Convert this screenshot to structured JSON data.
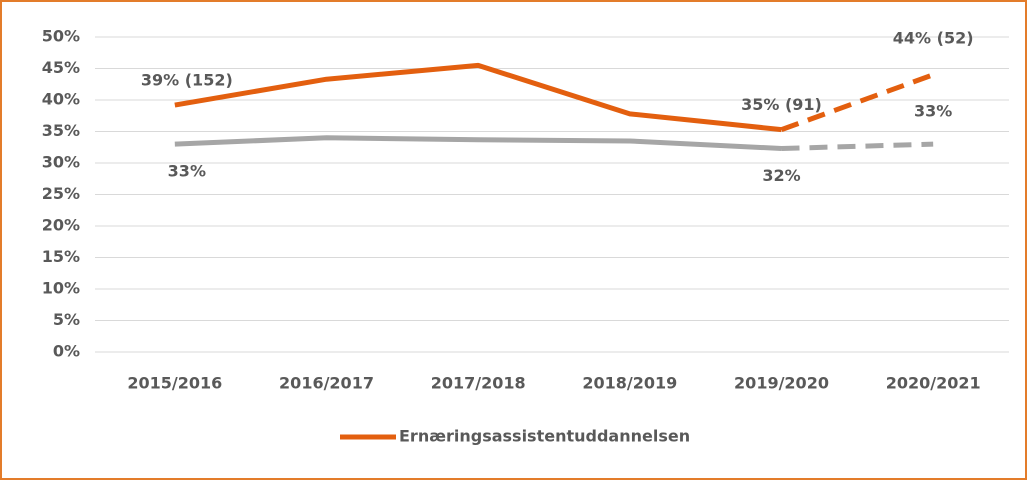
{
  "chart_data": {
    "type": "line",
    "categories": [
      "2015/2016",
      "2016/2017",
      "2017/2018",
      "2018/2019",
      "2019/2020",
      "2020/2021"
    ],
    "series": [
      {
        "name": "Ernæringsassistentuddannelsen",
        "color": "#e35f0f",
        "values": [
          39.2,
          43.3,
          45.5,
          37.8,
          35.3,
          44
        ],
        "value_labels": [
          "39% (152)",
          null,
          null,
          null,
          "35% (91)",
          "44% (52)"
        ],
        "dashed_last_segment": true
      },
      {
        "color": "#a6a6a6",
        "values": [
          33,
          34,
          33.7,
          33.5,
          32.3,
          33
        ],
        "value_labels": [
          "33%",
          null,
          null,
          null,
          "32%",
          "33%"
        ],
        "dashed_last_segment": true
      }
    ],
    "ylim": [
      0,
      50
    ],
    "yticks": [
      {
        "value": 0,
        "label": "0%"
      },
      {
        "value": 5,
        "label": "5%"
      },
      {
        "value": 10,
        "label": "10%"
      },
      {
        "value": 15,
        "label": "15%"
      },
      {
        "value": 20,
        "label": "20%"
      },
      {
        "value": 25,
        "label": "25%"
      },
      {
        "value": 30,
        "label": "30%"
      },
      {
        "value": 35,
        "label": "35%"
      },
      {
        "value": 40,
        "label": "40%"
      },
      {
        "value": 45,
        "label": "45%"
      },
      {
        "value": 50,
        "label": "50%"
      }
    ],
    "grid": true,
    "legend": "bottom"
  }
}
